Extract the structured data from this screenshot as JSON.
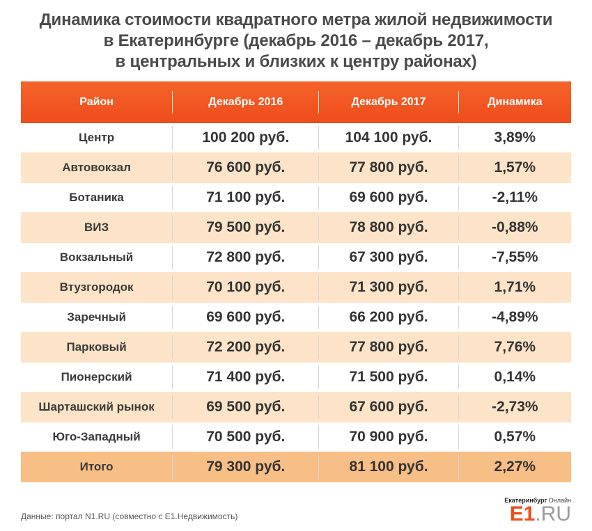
{
  "title": {
    "line1": "Динамика стоимости квадратного метра жилой недвижимости",
    "line2": "в Екатеринбурге (декабрь 2016 – декабрь 2017,",
    "line3": "в центральных и близких к центру районах)"
  },
  "table": {
    "headers": [
      "Район",
      "Декабрь 2016",
      "Декабрь 2017",
      "Динамика"
    ],
    "rows": [
      [
        "Центр",
        "100 200 руб.",
        "104 100 руб.",
        "3,89%"
      ],
      [
        "Автовокзал",
        "76 600 руб.",
        "77 800 руб.",
        "1,57%"
      ],
      [
        "Ботаника",
        "71 100 руб.",
        "69 600 руб.",
        "-2,11%"
      ],
      [
        "ВИЗ",
        "79 500 руб.",
        "78 800 руб.",
        "-0,88%"
      ],
      [
        "Вокзальный",
        "72 800 руб.",
        "67 300 руб.",
        "-7,55%"
      ],
      [
        "Втузгородок",
        "70 100 руб.",
        "71 300 руб.",
        "1,71%"
      ],
      [
        "Заречный",
        "69 600 руб.",
        "66 200 руб.",
        "-4,89%"
      ],
      [
        "Парковый",
        "72 200 руб.",
        "77 800 руб.",
        "7,76%"
      ],
      [
        "Пионерский",
        "71 400 руб.",
        "71 500 руб.",
        "0,14%"
      ],
      [
        "Шарташский рынок",
        "69 500 руб.",
        "67 600 руб.",
        "-2,73%"
      ],
      [
        "Юго-Западный",
        "70 500 руб.",
        "70 900 руб.",
        "0,57%"
      ]
    ],
    "total": [
      "Итого",
      "79 300 руб.",
      "81 100 руб.",
      "2,27%"
    ]
  },
  "footer": {
    "source": "Данные: портал N1.RU (совместно с E1.Недвижимость)"
  },
  "logo": {
    "city": "Екатеринбург",
    "online": "Онлайн",
    "brand": "E1",
    "domain": ".RU"
  },
  "colors": {
    "header_orange": "#ee4c1b",
    "row_shade": "#fde3c8",
    "total_shade": "#f7be86"
  }
}
